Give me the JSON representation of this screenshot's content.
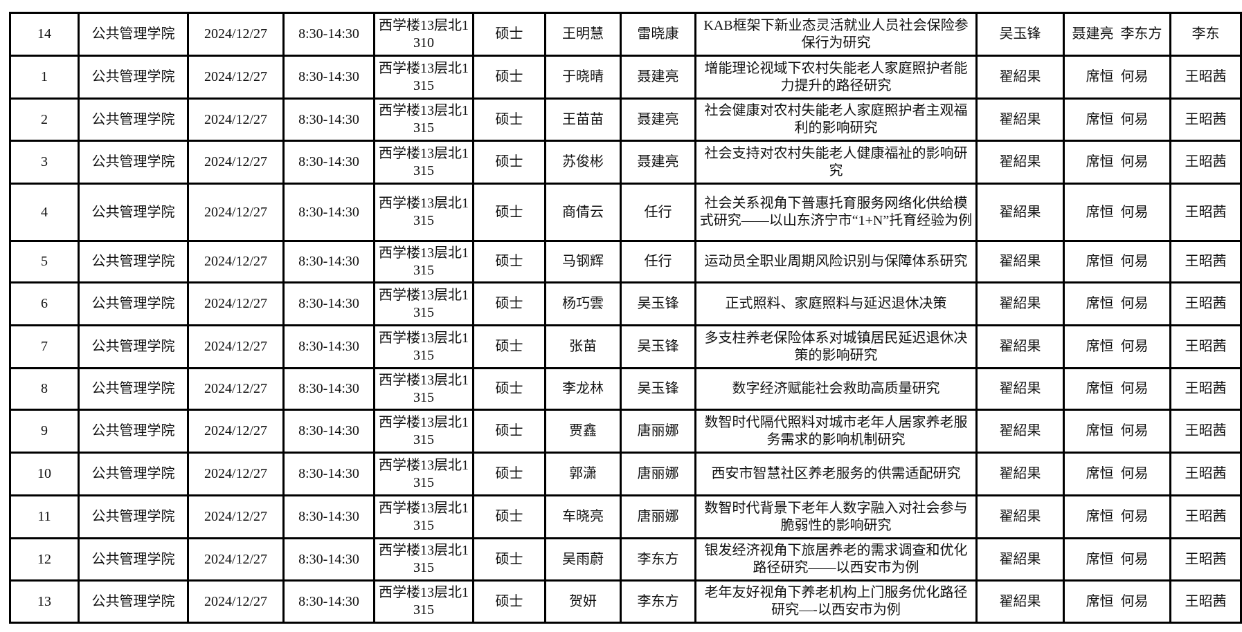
{
  "rows": [
    [
      "14",
      "公共管理学院",
      "2024/12/27",
      "8:30-14:30",
      "西学楼13层北1310",
      "硕士",
      "王明慧",
      "雷晓康",
      "KAB框架下新业态灵活就业人员社会保险参保行为研究",
      "吴玉锋",
      "聂建亮  李东方",
      "李东"
    ],
    [
      "1",
      "公共管理学院",
      "2024/12/27",
      "8:30-14:30",
      "西学楼13层北1315",
      "硕士",
      "于晓晴",
      "聂建亮",
      "增能理论视域下农村失能老人家庭照护者能力提升的路径研究",
      "翟紹果",
      "席恒  何易",
      "王昭茜"
    ],
    [
      "2",
      "公共管理学院",
      "2024/12/27",
      "8:30-14:30",
      "西学楼13层北1315",
      "硕士",
      "王苗苗",
      "聂建亮",
      "社会健康对农村失能老人家庭照护者主观福利的影响研究",
      "翟紹果",
      "席恒  何易",
      "王昭茜"
    ],
    [
      "3",
      "公共管理学院",
      "2024/12/27",
      "8:30-14:30",
      "西学楼13层北1315",
      "硕士",
      "苏俊彬",
      "聂建亮",
      "社会支持对农村失能老人健康福祉的影响研究",
      "翟紹果",
      "席恒  何易",
      "王昭茜"
    ],
    [
      "4",
      "公共管理学院",
      "2024/12/27",
      "8:30-14:30",
      "西学楼13层北1315",
      "硕士",
      "商倩云",
      "任行",
      "社会关系视角下普惠托育服务网络化供给模式研究——以山东济宁市“1+N”托育经验为例",
      "翟紹果",
      "席恒  何易",
      "王昭茜"
    ],
    [
      "5",
      "公共管理学院",
      "2024/12/27",
      "8:30-14:30",
      "西学楼13层北1315",
      "硕士",
      "马钢辉",
      "任行",
      "运动员全职业周期风险识别与保障体系研究",
      "翟紹果",
      "席恒  何易",
      "王昭茜"
    ],
    [
      "6",
      "公共管理学院",
      "2024/12/27",
      "8:30-14:30",
      "西学楼13层北1315",
      "硕士",
      "杨巧雲",
      "吴玉锋",
      "正式照料、家庭照料与延迟退休决策",
      "翟紹果",
      "席恒  何易",
      "王昭茜"
    ],
    [
      "7",
      "公共管理学院",
      "2024/12/27",
      "8:30-14:30",
      "西学楼13层北1315",
      "硕士",
      "张苗",
      "吴玉锋",
      "多支柱养老保险体系对城镇居民延迟退休决策的影响研究",
      "翟紹果",
      "席恒  何易",
      "王昭茜"
    ],
    [
      "8",
      "公共管理学院",
      "2024/12/27",
      "8:30-14:30",
      "西学楼13层北1315",
      "硕士",
      "李龙林",
      "吴玉锋",
      "数字经济赋能社会救助高质量研究",
      "翟紹果",
      "席恒  何易",
      "王昭茜"
    ],
    [
      "9",
      "公共管理学院",
      "2024/12/27",
      "8:30-14:30",
      "西学楼13层北1315",
      "硕士",
      "贾鑫",
      "唐丽娜",
      "数智时代隔代照料对城市老年人居家养老服务需求的影响机制研究",
      "翟紹果",
      "席恒  何易",
      "王昭茜"
    ],
    [
      "10",
      "公共管理学院",
      "2024/12/27",
      "8:30-14:30",
      "西学楼13层北1315",
      "硕士",
      "郭潇",
      "唐丽娜",
      "西安市智慧社区养老服务的供需适配研究",
      "翟紹果",
      "席恒  何易",
      "王昭茜"
    ],
    [
      "11",
      "公共管理学院",
      "2024/12/27",
      "8:30-14:30",
      "西学楼13层北1315",
      "硕士",
      "车晓亮",
      "唐丽娜",
      "数智时代背景下老年人数字融入对社会参与脆弱性的影响研究",
      "翟紹果",
      "席恒  何易",
      "王昭茜"
    ],
    [
      "12",
      "公共管理学院",
      "2024/12/27",
      "8:30-14:30",
      "西学楼13层北1315",
      "硕士",
      "吴雨蔚",
      "李东方",
      "银发经济视角下旅居养老的需求调查和优化路径研究——以西安市为例",
      "翟紹果",
      "席恒  何易",
      "王昭茜"
    ],
    [
      "13",
      "公共管理学院",
      "2024/12/27",
      "8:30-14:30",
      "西学楼13层北1315",
      "硕士",
      "贺妍",
      "李东方",
      "老年友好视角下养老机构上门服务优化路径研究—-以西安市为例",
      "翟紹果",
      "席恒  何易",
      "王昭茜"
    ]
  ]
}
